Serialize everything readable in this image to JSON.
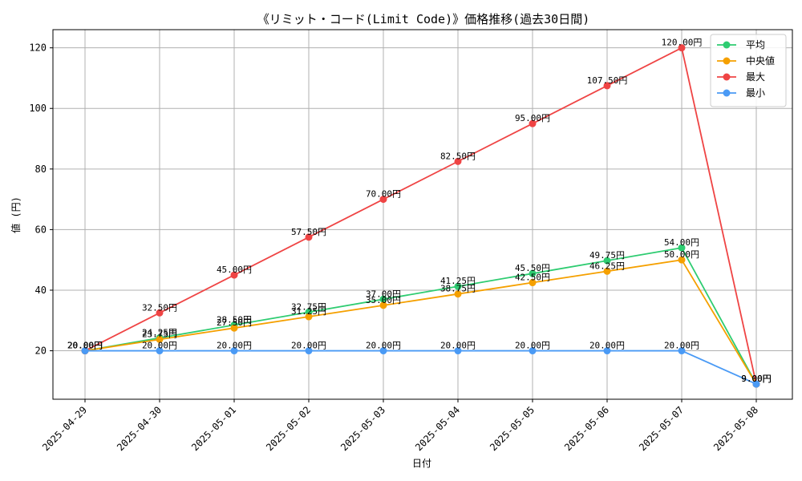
{
  "chart_data": {
    "type": "line",
    "title": "《リミット・コード(Limit Code)》価格推移(過去30日間)",
    "xlabel": "日付",
    "ylabel": "値 (円)",
    "unit_suffix": "円",
    "categories": [
      "2025-04-29",
      "2025-04-30",
      "2025-05-01",
      "2025-05-02",
      "2025-05-03",
      "2025-05-04",
      "2025-05-05",
      "2025-05-06",
      "2025-05-07",
      "2025-05-08"
    ],
    "ylim": [
      4,
      126
    ],
    "yticks": [
      20,
      40,
      60,
      80,
      100,
      120
    ],
    "grid": true,
    "legend_position": "top-right",
    "series": [
      {
        "name": "平均",
        "color": "#2ecc71",
        "values": [
          20.0,
          24.25,
          28.5,
          32.75,
          37.0,
          41.25,
          45.5,
          49.75,
          54.0,
          9.0
        ]
      },
      {
        "name": "中央値",
        "color": "#f5a000",
        "values": [
          20.0,
          23.75,
          27.5,
          31.25,
          35.0,
          38.75,
          42.5,
          46.25,
          50.0,
          9.0
        ]
      },
      {
        "name": "最大",
        "color": "#ef4444",
        "values": [
          20.0,
          32.5,
          45.0,
          57.5,
          70.0,
          82.5,
          95.0,
          107.5,
          120.0,
          9.0
        ]
      },
      {
        "name": "最小",
        "color": "#4a9af5",
        "values": [
          20.0,
          20.0,
          20.0,
          20.0,
          20.0,
          20.0,
          20.0,
          20.0,
          20.0,
          9.0
        ]
      }
    ]
  }
}
